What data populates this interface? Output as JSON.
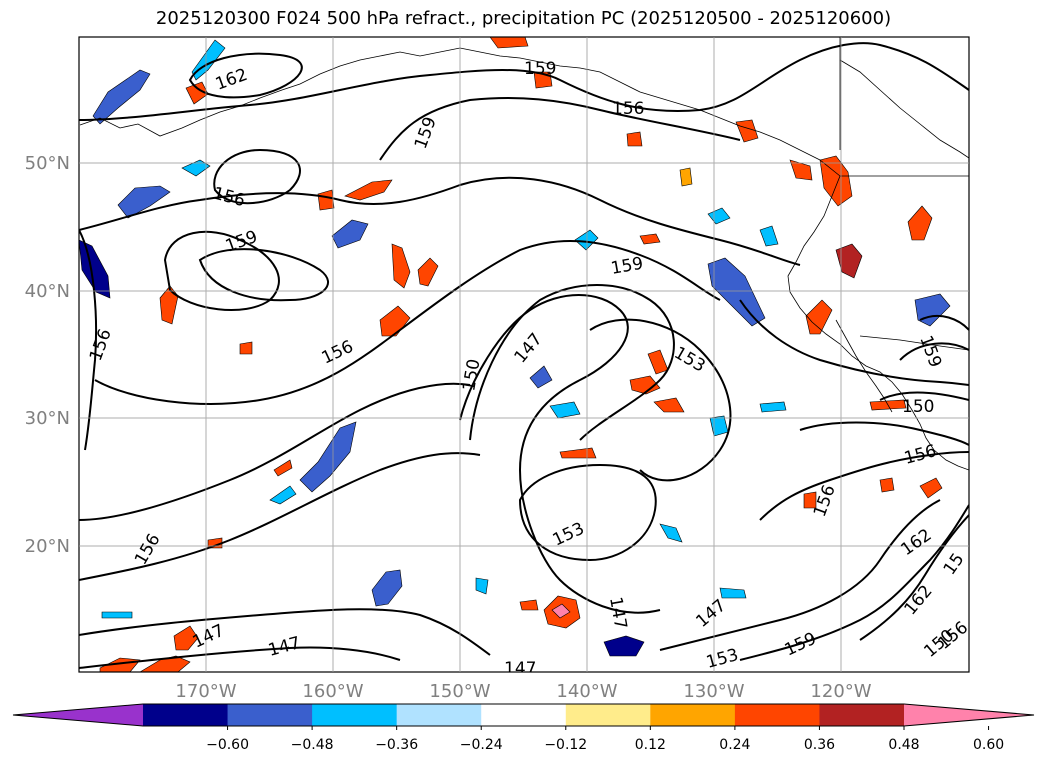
{
  "title": "2025120300 F024 500 hPa refract., precipitation PC (2025120500 - 2025120600)",
  "axes": {
    "lat_labels": [
      "50°N",
      "40°N",
      "30°N",
      "20°N"
    ],
    "lon_labels": [
      "170°W",
      "160°W",
      "150°W",
      "140°W",
      "130°W",
      "120°W"
    ]
  },
  "colorbar": {
    "ticks": [
      "−0.60",
      "−0.48",
      "−0.36",
      "−0.24",
      "−0.12",
      "0.12",
      "0.24",
      "0.36",
      "0.48",
      "0.60"
    ],
    "colors": [
      "#9932cc",
      "#00008b",
      "#3a5fcd",
      "#00bfff",
      "#b0e2ff",
      "#ffffff",
      "#ffec8b",
      "#ffa500",
      "#ff4500",
      "#b22222",
      "#ff82ab"
    ]
  },
  "contour_labels": [
    {
      "text": "162"
    },
    {
      "text": "159"
    },
    {
      "text": "156"
    },
    {
      "text": "159"
    },
    {
      "text": "156"
    },
    {
      "text": "159"
    },
    {
      "text": "156"
    },
    {
      "text": "156"
    },
    {
      "text": "159"
    },
    {
      "text": "147"
    },
    {
      "text": "150"
    },
    {
      "text": "153"
    },
    {
      "text": "150"
    },
    {
      "text": "156"
    },
    {
      "text": "159"
    },
    {
      "text": "156"
    },
    {
      "text": "153"
    },
    {
      "text": "156"
    },
    {
      "text": "162"
    },
    {
      "text": "15"
    },
    {
      "text": "162"
    },
    {
      "text": "147"
    },
    {
      "text": "147"
    },
    {
      "text": "147"
    },
    {
      "text": "147"
    },
    {
      "text": "147"
    },
    {
      "text": "153"
    },
    {
      "text": "159"
    },
    {
      "text": "150"
    },
    {
      "text": "156"
    }
  ]
}
